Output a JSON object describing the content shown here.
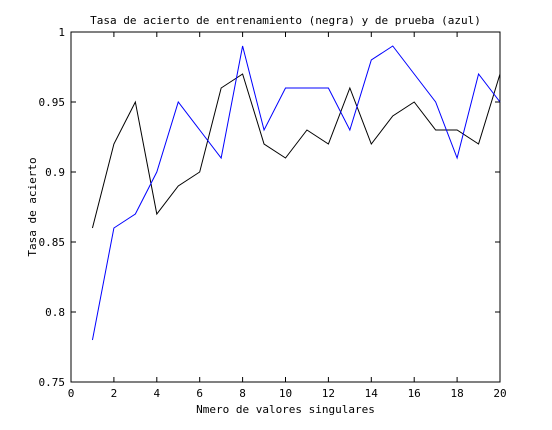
{
  "chart_data": {
    "type": "line",
    "title": "Tasa de acierto de entrenamiento (negra) y de prueba (azul)",
    "xlabel": "Nmero de valores singulares",
    "ylabel": "Tasa de acierto",
    "xlim": [
      0,
      20
    ],
    "ylim": [
      0.75,
      1
    ],
    "x_ticks": [
      0,
      2,
      4,
      6,
      8,
      10,
      12,
      14,
      16,
      18,
      20
    ],
    "x_tick_labels": [
      "0",
      "2",
      "4",
      "6",
      "8",
      "10",
      "12",
      "14",
      "16",
      "18",
      "20"
    ],
    "y_ticks": [
      0.75,
      0.8,
      0.85,
      0.9,
      0.95,
      1
    ],
    "y_tick_labels": [
      "0.75",
      "0.8",
      "0.85",
      "0.9",
      "0.95",
      "1"
    ],
    "grid": false,
    "x": [
      1,
      2,
      3,
      4,
      5,
      6,
      7,
      8,
      9,
      10,
      11,
      12,
      13,
      14,
      15,
      16,
      17,
      18,
      19,
      20
    ],
    "series": [
      {
        "color": "#000000",
        "values": [
          0.86,
          0.92,
          0.95,
          0.87,
          0.89,
          0.9,
          0.96,
          0.97,
          0.92,
          0.91,
          0.93,
          0.92,
          0.96,
          0.92,
          0.94,
          0.95,
          0.93,
          0.93,
          0.92,
          0.97
        ]
      },
      {
        "color": "#0000ff",
        "values": [
          0.78,
          0.86,
          0.87,
          0.9,
          0.95,
          0.93,
          0.91,
          0.99,
          0.93,
          0.96,
          0.96,
          0.96,
          0.93,
          0.98,
          0.99,
          0.97,
          0.95,
          0.91,
          0.97,
          0.95
        ]
      }
    ]
  }
}
